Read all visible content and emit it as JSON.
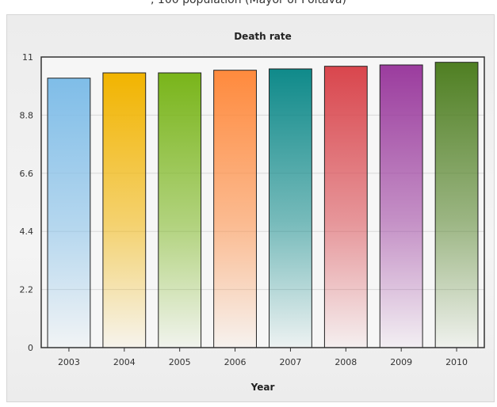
{
  "page": {
    "top_title": ", 100 population (Mayor of Poltava)"
  },
  "chart_data": {
    "type": "bar",
    "title": "Death rate",
    "xlabel": "Year",
    "ylabel": "",
    "categories": [
      "2003",
      "2004",
      "2005",
      "2006",
      "2007",
      "2008",
      "2009",
      "2010"
    ],
    "values": [
      10.2,
      10.4,
      10.4,
      10.5,
      10.55,
      10.65,
      10.7,
      10.8
    ],
    "ylim": [
      0,
      11
    ],
    "yticks": [
      "0",
      "2.2",
      "4.4",
      "6.6",
      "8.8",
      "11"
    ],
    "grid": true,
    "legend": "none",
    "colors": [
      "#7fbde8",
      "#f2b400",
      "#79b51a",
      "#ff8a3d",
      "#0f8a8a",
      "#d9464d",
      "#9b3c9e",
      "#4f7f22"
    ]
  }
}
